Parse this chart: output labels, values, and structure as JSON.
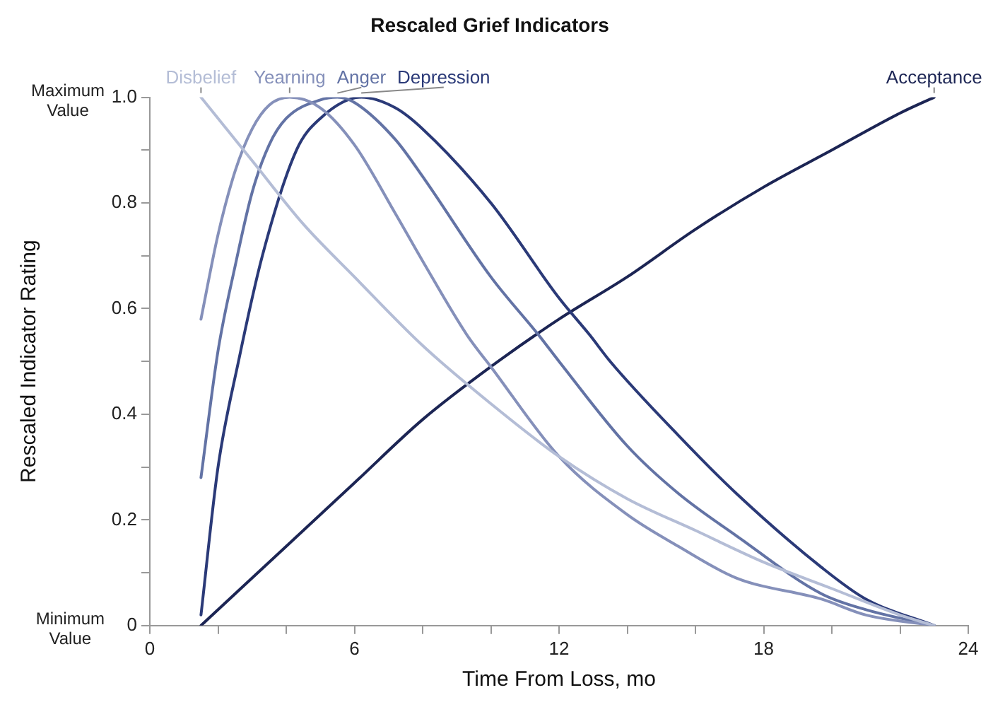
{
  "chart_data": {
    "type": "line",
    "title": "Rescaled Grief Indicators",
    "xlabel": "Time From Loss, mo",
    "ylabel": "Rescaled Indicator Rating",
    "xlim": [
      0,
      24
    ],
    "ylim": [
      0,
      1
    ],
    "xticks": [
      0,
      {
        "value": 2,
        "label": null
      },
      {
        "value": 4,
        "label": null
      },
      6,
      {
        "value": 8,
        "label": null
      },
      {
        "value": 10,
        "label": null
      },
      12,
      {
        "value": 14,
        "label": null
      },
      {
        "value": 16,
        "label": null
      },
      18,
      {
        "value": 20,
        "label": null
      },
      {
        "value": 22,
        "label": null
      },
      24
    ],
    "yticks": [
      0,
      {
        "value": 0.1,
        "label": null
      },
      0.2,
      {
        "value": 0.3,
        "label": null
      },
      0.4,
      {
        "value": 0.5,
        "label": null
      },
      0.6,
      {
        "value": 0.7,
        "label": null
      },
      0.8,
      {
        "value": 0.9,
        "label": null
      },
      {
        "value": 1,
        "label": "1.0"
      }
    ],
    "marker": "none",
    "line_style": "solid",
    "annotations": [
      "Maximum Value",
      "Minimum Value"
    ],
    "series": [
      {
        "name": "Disbelief",
        "color": "#b4bdd6",
        "x": [
          1.5,
          3,
          4.5,
          6,
          8,
          10,
          12,
          14,
          16,
          18,
          20,
          22,
          23
        ],
        "values": [
          1.0,
          0.88,
          0.76,
          0.66,
          0.53,
          0.42,
          0.32,
          0.24,
          0.18,
          0.12,
          0.07,
          0.02,
          0
        ]
      },
      {
        "name": "Yearning",
        "color": "#8590ba",
        "x": [
          1.5,
          2,
          2.5,
          3,
          3.5,
          4.1,
          5,
          6,
          7.2,
          8,
          9.3,
          10,
          12,
          14,
          15.5,
          17.2,
          19.7,
          21,
          23
        ],
        "values": [
          0.58,
          0.74,
          0.86,
          0.94,
          0.985,
          1.0,
          0.98,
          0.91,
          0.78,
          0.69,
          0.55,
          0.49,
          0.32,
          0.21,
          0.15,
          0.09,
          0.05,
          0.02,
          0
        ]
      },
      {
        "name": "Anger",
        "color": "#6373a5",
        "x": [
          1.5,
          2,
          2.5,
          3,
          3.5,
          4,
          5,
          5.5,
          6,
          7.2,
          8,
          10,
          11.4,
          12,
          14,
          15.5,
          17.2,
          19.7,
          21,
          23
        ],
        "values": [
          0.28,
          0.52,
          0.68,
          0.82,
          0.91,
          0.96,
          0.995,
          1.0,
          0.99,
          0.92,
          0.85,
          0.66,
          0.55,
          0.5,
          0.34,
          0.25,
          0.17,
          0.06,
          0.03,
          0
        ]
      },
      {
        "name": "Depression",
        "color": "#2b3a78",
        "x": [
          1.5,
          2,
          2.6,
          3.3,
          4.3,
          5,
          6.2,
          7.2,
          8,
          10,
          12,
          12.9,
          13.5,
          15.5,
          17.2,
          19.7,
          21,
          23
        ],
        "values": [
          0.02,
          0.3,
          0.5,
          0.7,
          0.9,
          0.96,
          1.0,
          0.98,
          0.94,
          0.8,
          0.62,
          0.55,
          0.5,
          0.36,
          0.25,
          0.11,
          0.05,
          0
        ]
      },
      {
        "name": "Acceptance",
        "color": "#1c2554",
        "x": [
          1.5,
          4,
          6,
          8,
          10,
          12,
          14,
          16,
          18,
          20,
          22,
          23
        ],
        "values": [
          0,
          0.15,
          0.27,
          0.39,
          0.49,
          0.58,
          0.66,
          0.75,
          0.83,
          0.9,
          0.97,
          1.0
        ]
      }
    ]
  }
}
